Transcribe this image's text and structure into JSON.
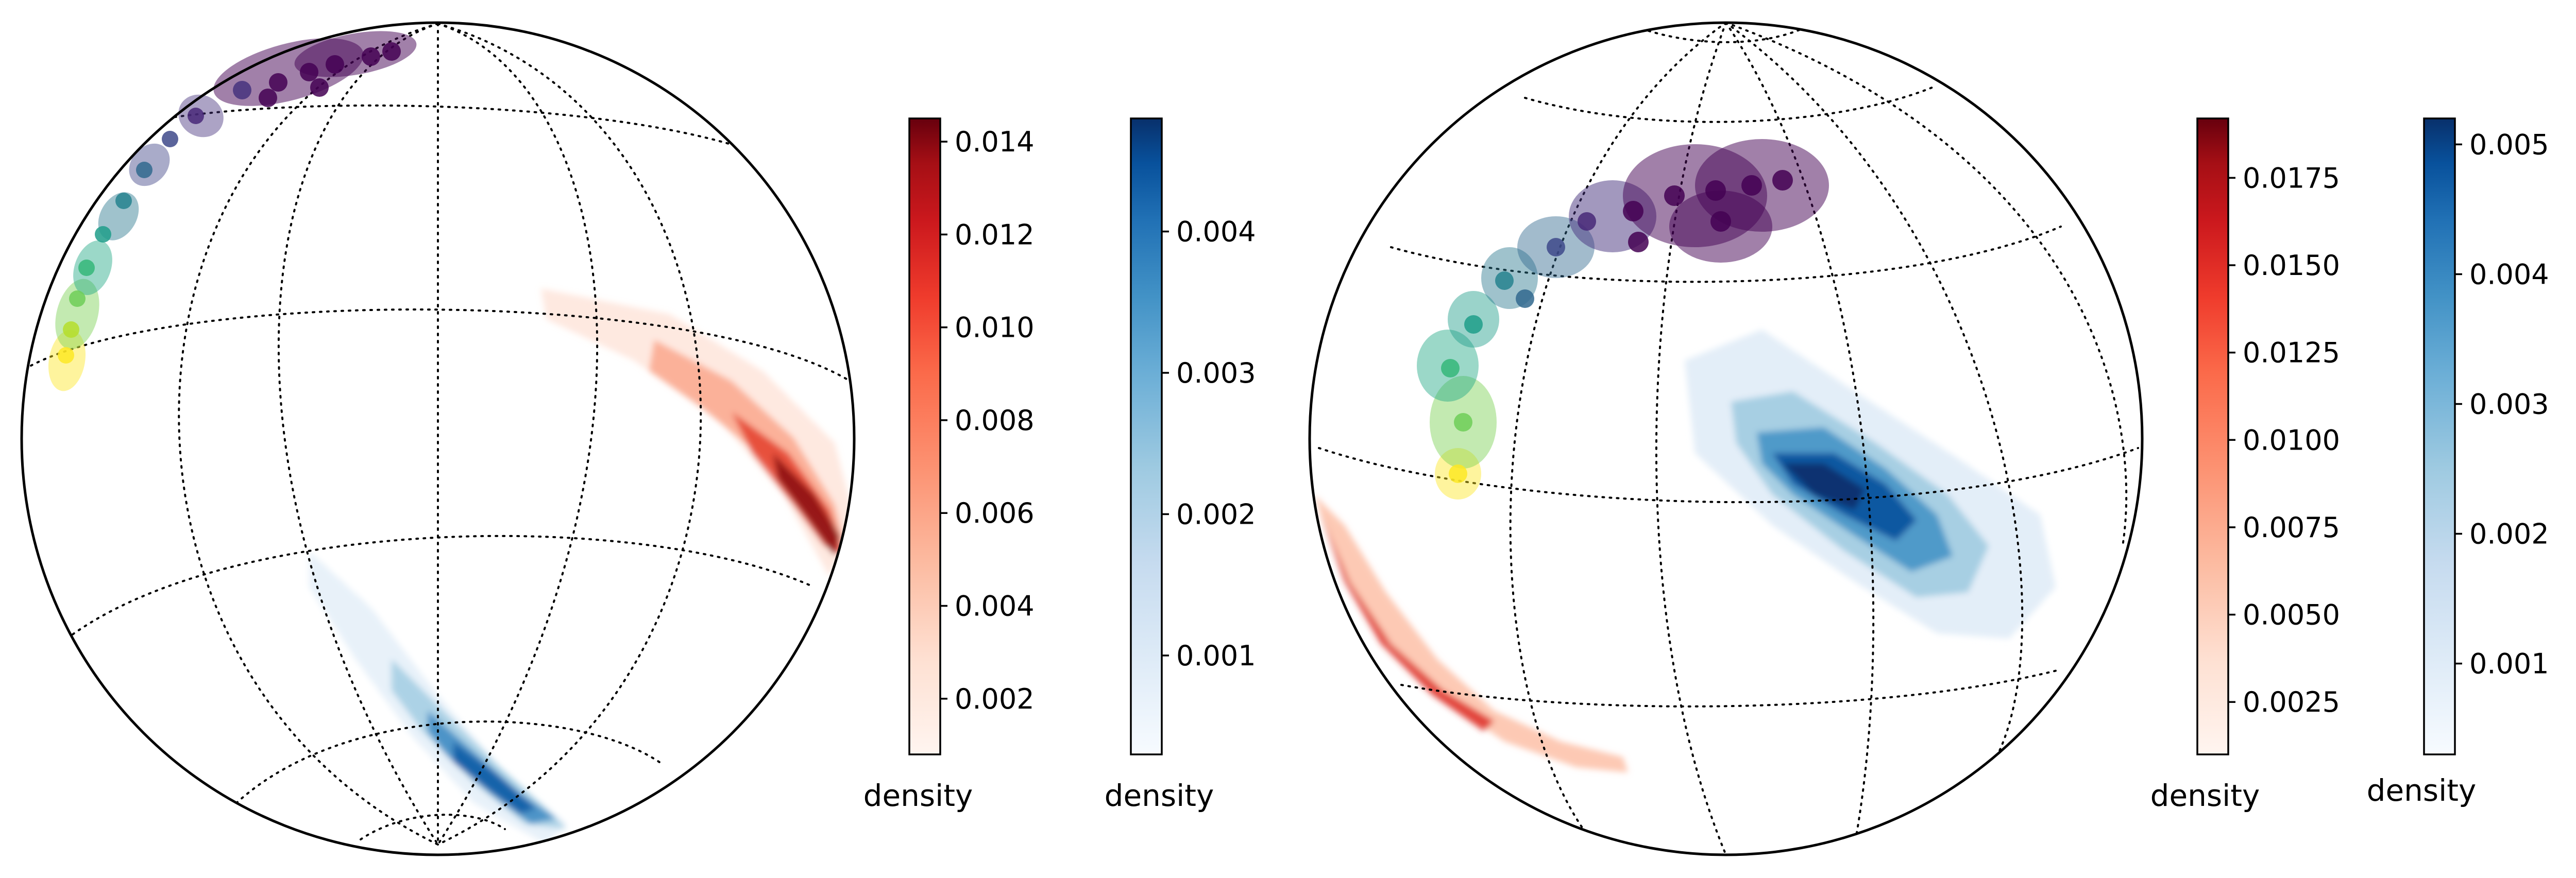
{
  "chart_data": [
    {
      "type": "heatmap",
      "title": "",
      "xlabel": "",
      "ylabel": "",
      "grid": true,
      "description_of_marks": "orthographic sphere with dotted graticule; red density band on the right, blue density band near the bottom, path of colored dots (yellow to green to blue to purple) along the upper-left limb",
      "colorbars": [
        {
          "name": "red",
          "cmap": "Reds",
          "label": "density",
          "range": [
            0.0008,
            0.0145
          ],
          "ticks": [
            0.002,
            0.004,
            0.006,
            0.008,
            0.01,
            0.012,
            0.014
          ],
          "tick_labels": [
            "0.002",
            "0.004",
            "0.006",
            "0.008",
            "0.010",
            "0.012",
            "0.014"
          ]
        },
        {
          "name": "blue",
          "cmap": "Blues",
          "label": "density",
          "range": [
            0.0003,
            0.0048
          ],
          "ticks": [
            0.001,
            0.002,
            0.003,
            0.004
          ],
          "tick_labels": [
            "0.001",
            "0.002",
            "0.003",
            "0.004"
          ]
        }
      ]
    },
    {
      "type": "heatmap",
      "title": "",
      "xlabel": "",
      "ylabel": "",
      "grid": true,
      "description_of_marks": "orthographic sphere with dotted graticule; broad blue density patch right of centre, thin red band along the lower-left limb, path of colored dots (yellow to green to blue to purple) in the upper-left quadrant",
      "colorbars": [
        {
          "name": "red",
          "cmap": "Reds",
          "label": "density",
          "range": [
            0.001,
            0.0192
          ],
          "ticks": [
            0.0025,
            0.005,
            0.0075,
            0.01,
            0.0125,
            0.015,
            0.0175
          ],
          "tick_labels": [
            "0.0025",
            "0.0050",
            "0.0075",
            "0.0100",
            "0.0125",
            "0.0150",
            "0.0175"
          ]
        },
        {
          "name": "blue",
          "cmap": "Blues",
          "label": "density",
          "range": [
            0.0003,
            0.0052
          ],
          "ticks": [
            0.001,
            0.002,
            0.003,
            0.004,
            0.005
          ],
          "tick_labels": [
            "0.001",
            "0.002",
            "0.003",
            "0.004",
            "0.005"
          ]
        }
      ]
    }
  ]
}
